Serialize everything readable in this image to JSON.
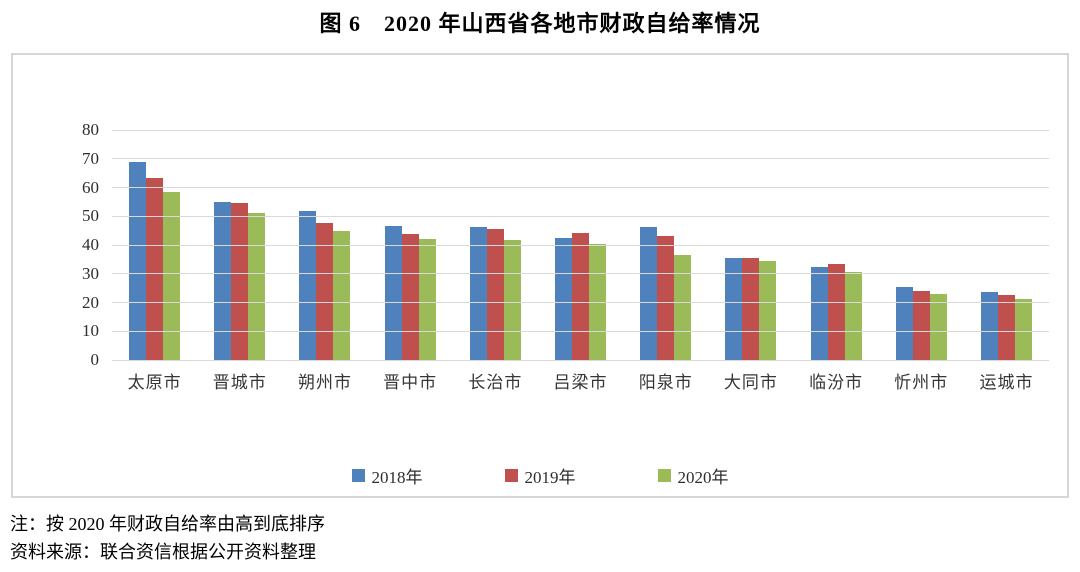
{
  "title": "图 6　2020 年山西省各地市财政自给率情况",
  "notes": {
    "sort_note": "注：按 2020 年财政自给率由高到底排序",
    "source_note": "资料来源：联合资信根据公开资料整理"
  },
  "colors": {
    "series_2018": "#4F81BD",
    "series_2019": "#C0504D",
    "series_2020": "#9BBB59",
    "gridline": "#d9d9d9",
    "frame_border": "#d6d6d6"
  },
  "chart_data": {
    "type": "bar",
    "title": "图 6　2020 年山西省各地市财政自给率情况",
    "categories": [
      "太原市",
      "晋城市",
      "朔州市",
      "晋中市",
      "长治市",
      "吕梁市",
      "阳泉市",
      "大同市",
      "临汾市",
      "忻州市",
      "运城市"
    ],
    "series": [
      {
        "name": "2018年",
        "color": "#4F81BD",
        "values": [
          68.8,
          54.8,
          52.0,
          46.6,
          46.4,
          42.5,
          46.3,
          35.5,
          32.5,
          25.5,
          23.5
        ]
      },
      {
        "name": "2019年",
        "color": "#C0504D",
        "values": [
          63.2,
          54.7,
          47.7,
          43.9,
          45.4,
          44.3,
          43.3,
          35.6,
          33.5,
          24.1,
          22.7
        ]
      },
      {
        "name": "2020年",
        "color": "#9BBB59",
        "values": [
          58.4,
          51.0,
          45.0,
          42.0,
          41.7,
          40.4,
          36.5,
          34.5,
          30.5,
          23.1,
          21.2
        ]
      }
    ],
    "xlabel": "",
    "ylabel": "",
    "ylim": [
      0,
      80
    ],
    "ytick_step": 10,
    "grid": "horizontal",
    "legend_position": "bottom"
  }
}
